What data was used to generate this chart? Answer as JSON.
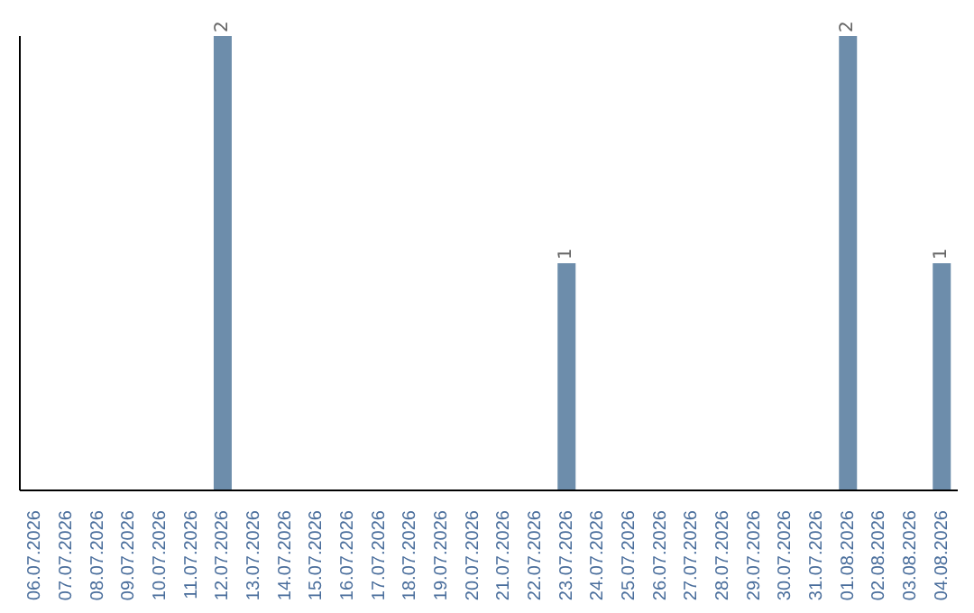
{
  "chart_data": {
    "type": "bar",
    "categories": [
      "06.07.2026",
      "07.07.2026",
      "08.07.2026",
      "09.07.2026",
      "10.07.2026",
      "11.07.2026",
      "12.07.2026",
      "13.07.2026",
      "14.07.2026",
      "15.07.2026",
      "16.07.2026",
      "17.07.2026",
      "18.07.2026",
      "19.07.2026",
      "20.07.2026",
      "21.07.2026",
      "22.07.2026",
      "23.07.2026",
      "24.07.2026",
      "25.07.2026",
      "26.07.2026",
      "27.07.2026",
      "28.07.2026",
      "29.07.2026",
      "30.07.2026",
      "31.07.2026",
      "01.08.2026",
      "02.08.2026",
      "03.08.2026",
      "04.08.2026"
    ],
    "values": [
      0,
      0,
      0,
      0,
      0,
      0,
      2,
      0,
      0,
      0,
      0,
      0,
      0,
      0,
      0,
      0,
      0,
      1,
      0,
      0,
      0,
      0,
      0,
      0,
      0,
      0,
      2,
      0,
      0,
      1
    ],
    "value_labels": [
      null,
      null,
      null,
      null,
      null,
      null,
      "2",
      null,
      null,
      null,
      null,
      null,
      null,
      null,
      null,
      null,
      null,
      "1",
      null,
      null,
      null,
      null,
      null,
      null,
      null,
      null,
      "2",
      null,
      null,
      "1"
    ],
    "color": "#6d8dab"
  }
}
